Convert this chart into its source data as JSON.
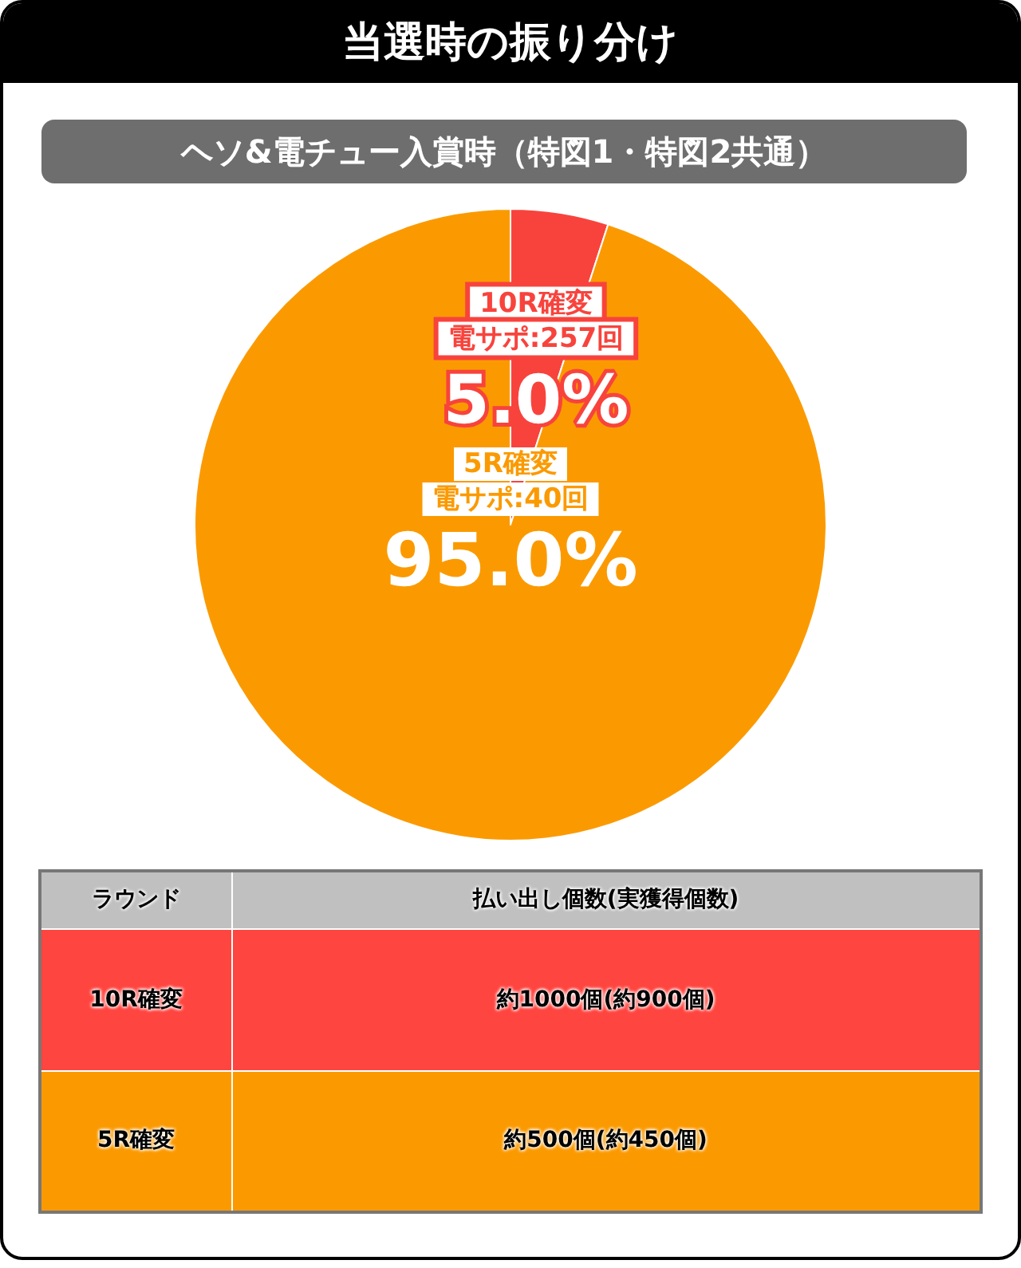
{
  "chart_data": [
    {
      "type": "pie",
      "title": "当選時の振り分け",
      "subtitle": "ヘソ&電チュー入賞時（特図1・特図2共通）",
      "categories": [
        "10R確変",
        "5R確変"
      ],
      "values": [
        5.0,
        95.0
      ],
      "value_labels": [
        "5.0%",
        "95.0%"
      ],
      "annotations": [
        {
          "text": "電サポ:257回",
          "x": "10R確変"
        },
        {
          "text": "電サポ:40回",
          "x": "5R確変"
        }
      ],
      "colors": [
        "#f8433d",
        "#fb9a00"
      ]
    },
    {
      "type": "other",
      "categories": [
        "ラウンド",
        "払い出し個数(実獲得個数)"
      ],
      "annotations": [
        "10R確変",
        "約1000個(約900個)",
        "5R確変",
        "約500個(約450個)"
      ],
      "colors": [
        "#c0c0c0",
        "#ff4540",
        "#fb9a00"
      ]
    }
  ]
}
